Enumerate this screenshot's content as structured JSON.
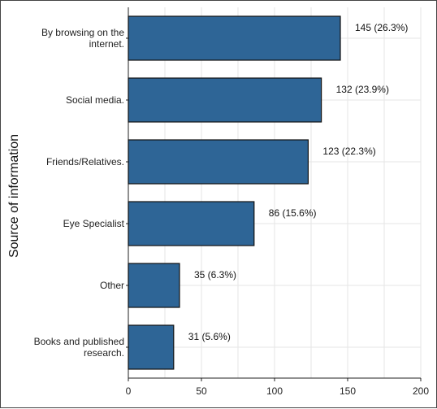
{
  "chart_data": {
    "type": "bar",
    "orientation": "horizontal",
    "categories": [
      [
        "By browsing on the",
        "internet."
      ],
      [
        "Social media."
      ],
      [
        "Friends/Relatives."
      ],
      [
        "Eye Specialist"
      ],
      [
        "Other"
      ],
      [
        "Books and published",
        "research."
      ]
    ],
    "values": [
      145,
      132,
      123,
      86,
      35,
      31
    ],
    "data_labels": [
      "145 (26.3%)",
      "132 (23.9%)",
      "123 (22.3%)",
      "86 (15.6%)",
      "35 (6.3%)",
      "31 (5.6%)"
    ],
    "title": "",
    "xlabel": "",
    "ylabel": "Source of information",
    "xlim": [
      0,
      200
    ],
    "xticks": [
      "0",
      "50",
      "100",
      "150",
      "200"
    ],
    "grid": true,
    "bar_color": "#2e6596",
    "bar_edge_color": "#111111"
  }
}
